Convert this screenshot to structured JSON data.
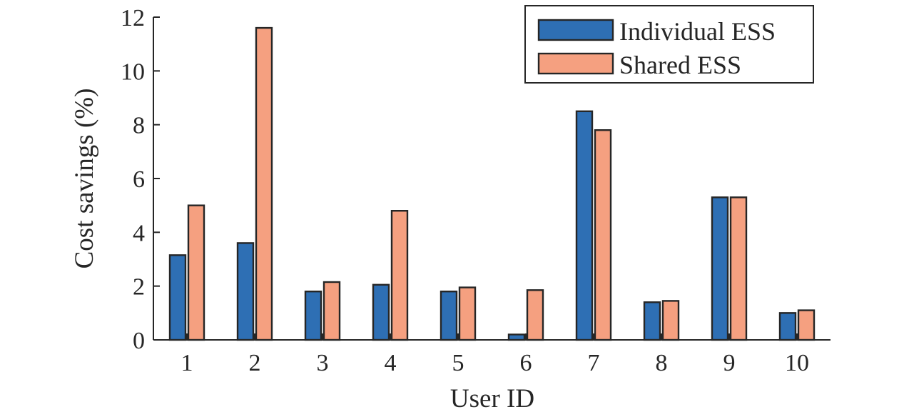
{
  "chart_data": {
    "type": "bar",
    "title": "",
    "xlabel": "User ID",
    "ylabel": "Cost savings (%)",
    "categories": [
      "1",
      "2",
      "3",
      "4",
      "5",
      "6",
      "7",
      "8",
      "9",
      "10"
    ],
    "ylim": [
      0,
      12
    ],
    "yticks": [
      "0",
      "2",
      "4",
      "6",
      "8",
      "10",
      "12"
    ],
    "grid": false,
    "legend_position": "top-right",
    "series": [
      {
        "name": "Individual ESS",
        "color": "#2e6fb4",
        "values": [
          3.15,
          3.6,
          1.8,
          2.05,
          1.8,
          0.2,
          8.5,
          1.4,
          5.3,
          1.0
        ]
      },
      {
        "name": "Shared ESS",
        "color": "#f5a080",
        "values": [
          5.0,
          11.6,
          2.15,
          4.8,
          1.95,
          1.85,
          7.8,
          1.45,
          5.3,
          1.1
        ]
      }
    ]
  }
}
